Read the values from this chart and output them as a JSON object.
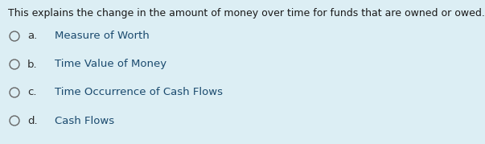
{
  "background_color": "#dceef4",
  "question_text": "This explains the change in the amount of money over time for funds that are owned or owed.",
  "question_color": "#1a1a1a",
  "options": [
    {
      "label": "a.",
      "text": "Measure of Worth"
    },
    {
      "label": "b.",
      "text": "Time Value of Money"
    },
    {
      "label": "c.",
      "text": "Time Occurrence of Cash Flows"
    },
    {
      "label": "d.",
      "text": "Cash Flows"
    }
  ],
  "option_label_color": "#2c2c2c",
  "option_text_color": "#1a4a6e",
  "circle_color": "#666666",
  "font_size_question": 9.0,
  "font_size_options": 9.5,
  "fig_width": 6.03,
  "fig_height": 1.79,
  "dpi": 100
}
